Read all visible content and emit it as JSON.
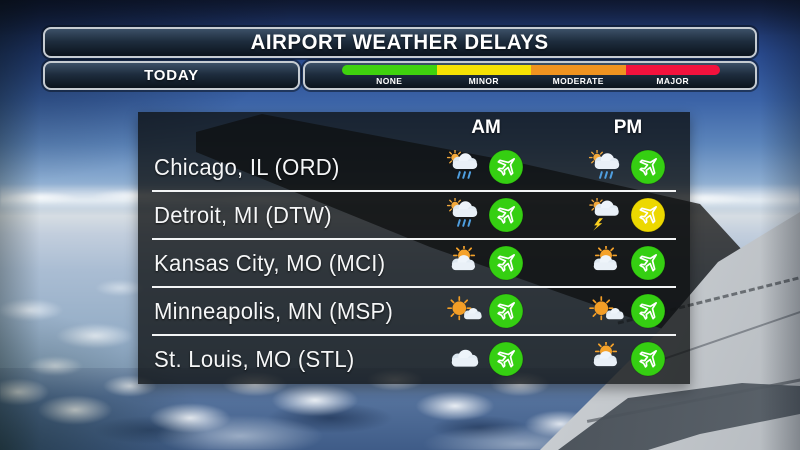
{
  "header": {
    "title": "AIRPORT WEATHER DELAYS",
    "day_label": "TODAY"
  },
  "legend": {
    "items": [
      {
        "label": "NONE",
        "color": "#3fd20e"
      },
      {
        "label": "MINOR",
        "color": "#f5e104"
      },
      {
        "label": "MODERATE",
        "color": "#ef9320"
      },
      {
        "label": "MAJOR",
        "color": "#f2123d"
      }
    ]
  },
  "columns": {
    "am": "AM",
    "pm": "PM"
  },
  "rows": [
    {
      "city": "Chicago, IL (ORD)",
      "am": {
        "weather": "sun-showers",
        "delay": "none"
      },
      "pm": {
        "weather": "sun-showers",
        "delay": "none"
      }
    },
    {
      "city": "Detroit, MI (DTW)",
      "am": {
        "weather": "sun-showers",
        "delay": "none"
      },
      "pm": {
        "weather": "thunderstorms",
        "delay": "minor"
      }
    },
    {
      "city": "Kansas City, MO (MCI)",
      "am": {
        "weather": "partly-sunny",
        "delay": "none"
      },
      "pm": {
        "weather": "partly-sunny",
        "delay": "none"
      }
    },
    {
      "city": "Minneapolis, MN (MSP)",
      "am": {
        "weather": "mostly-sunny",
        "delay": "none"
      },
      "pm": {
        "weather": "mostly-sunny",
        "delay": "none"
      }
    },
    {
      "city": "St. Louis, MO (STL)",
      "am": {
        "weather": "cloudy",
        "delay": "none"
      },
      "pm": {
        "weather": "partly-sunny",
        "delay": "none"
      }
    }
  ],
  "delay_colors": {
    "none": "#35cf12",
    "minor": "#ecd800",
    "moderate": "#ef9320",
    "major": "#f2123d"
  },
  "chart_data": {
    "type": "table",
    "title": "AIRPORT WEATHER DELAYS",
    "subtitle": "TODAY",
    "legend": [
      "NONE",
      "MINOR",
      "MODERATE",
      "MAJOR"
    ],
    "legend_colors": [
      "#3fd20e",
      "#f5e104",
      "#ef9320",
      "#f2123d"
    ],
    "columns": [
      "Airport",
      "AM weather",
      "AM delay",
      "PM weather",
      "PM delay"
    ],
    "rows": [
      [
        "Chicago, IL (ORD)",
        "sun showers",
        "none",
        "sun showers",
        "none"
      ],
      [
        "Detroit, MI (DTW)",
        "sun showers",
        "none",
        "thunderstorms",
        "minor"
      ],
      [
        "Kansas City, MO (MCI)",
        "partly sunny",
        "none",
        "partly sunny",
        "none"
      ],
      [
        "Minneapolis, MN (MSP)",
        "mostly sunny",
        "none",
        "mostly sunny",
        "none"
      ],
      [
        "St. Louis, MO (STL)",
        "cloudy",
        "none",
        "partly sunny",
        "none"
      ]
    ]
  }
}
